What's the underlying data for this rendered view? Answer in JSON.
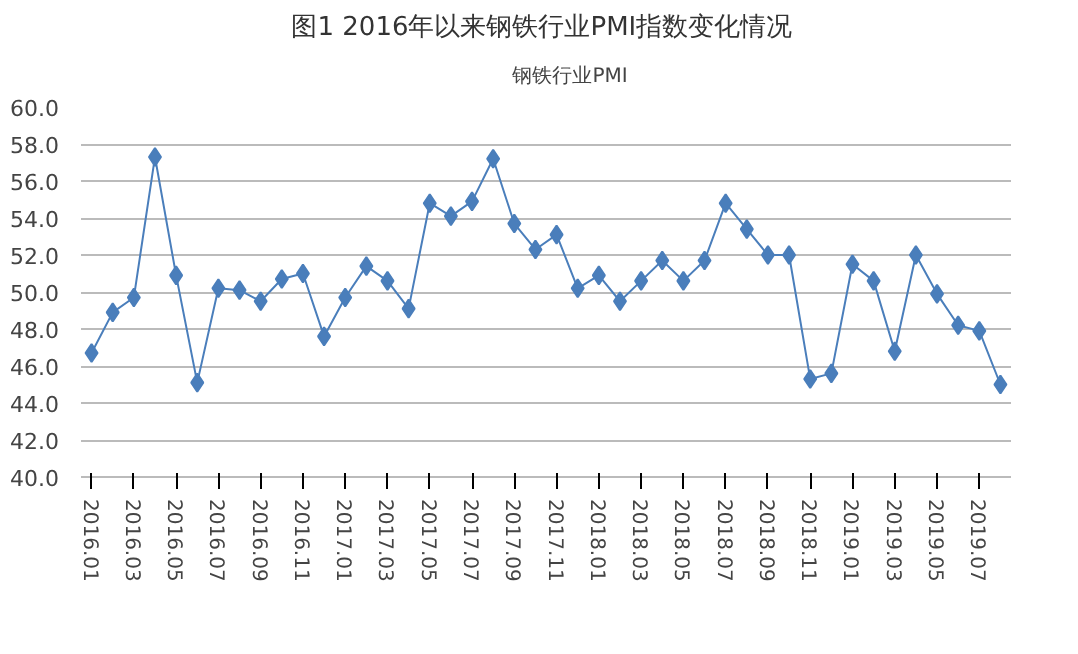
{
  "chart_data": {
    "type": "line",
    "title": "图1  2016年以来钢铁行业PMI指数变化情况",
    "categories": [
      "2016.01",
      null,
      "2016.03",
      null,
      "2016.05",
      null,
      "2016.07",
      null,
      "2016.09",
      null,
      "2016.11",
      null,
      "2017.01",
      null,
      "2017.03",
      null,
      "2017.05",
      null,
      "2017.07",
      null,
      "2017.09",
      null,
      "2017.11",
      null,
      "2018.01",
      null,
      "2018.03",
      null,
      "2018.05",
      null,
      "2018.07",
      null,
      "2018.09",
      null,
      "2018.11",
      null,
      "2019.01",
      null,
      "2019.03",
      null,
      "2019.05",
      null,
      "2019.07",
      null
    ],
    "series": [
      {
        "name": "钢铁行业PMI",
        "color": "#4a7ebb",
        "values": [
          46.7,
          48.9,
          49.7,
          57.3,
          50.9,
          45.1,
          50.2,
          50.1,
          49.5,
          50.7,
          51.0,
          47.6,
          49.7,
          51.4,
          50.6,
          49.1,
          54.8,
          54.1,
          54.9,
          57.2,
          53.7,
          52.3,
          53.1,
          50.2,
          50.9,
          49.5,
          50.6,
          51.7,
          50.6,
          51.7,
          54.8,
          53.4,
          52.0,
          52.0,
          45.3,
          45.6,
          51.5,
          50.6,
          46.8,
          52.0,
          49.9,
          48.2,
          47.9,
          45.0
        ]
      }
    ],
    "ylim": [
      40,
      60
    ],
    "yticks": [
      {
        "value": 40,
        "label": "40.0"
      },
      {
        "value": 42,
        "label": "42.0"
      },
      {
        "value": 44,
        "label": "44.0"
      },
      {
        "value": 46,
        "label": "46.0"
      },
      {
        "value": 48,
        "label": "48.0"
      },
      {
        "value": 50,
        "label": "50.0"
      },
      {
        "value": 52,
        "label": "52.0"
      },
      {
        "value": 54,
        "label": "54.0"
      },
      {
        "value": 56,
        "label": "56.0"
      },
      {
        "value": 58,
        "label": "58.0"
      },
      {
        "value": 60,
        "label": "60.0"
      }
    ],
    "grid": "y",
    "legend": "top",
    "marker": "diamond",
    "line_style": "solid"
  }
}
